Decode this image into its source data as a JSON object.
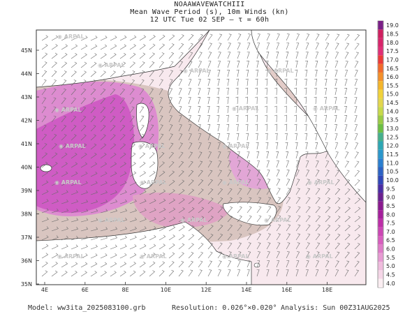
{
  "header": {
    "title_line1": "NOAAWAVEWATCHIII",
    "title_line2": "Mean Wave Period (s), 10m Winds (kn)",
    "title_line3": "12 UTC Tue 02 SEP  –  τ = 60h"
  },
  "map": {
    "lat_labels": [
      "45N",
      "44N",
      "43N",
      "42N",
      "41N",
      "40N",
      "39N",
      "38N",
      "37N",
      "36N",
      "35N"
    ],
    "lon_labels": [
      "4E",
      "6E",
      "8E",
      "10E",
      "12E",
      "14E",
      "16E",
      "18E"
    ],
    "watermark": "ARPAL"
  },
  "colorbar": {
    "values": [
      "19.0",
      "18.5",
      "18.0",
      "17.5",
      "17.0",
      "16.5",
      "16.0",
      "15.5",
      "15.0",
      "14.5",
      "14.0",
      "13.5",
      "13.0",
      "12.5",
      "12.0",
      "11.5",
      "11.0",
      "10.5",
      "10.0",
      "9.5",
      "9.0",
      "8.5",
      "8.0",
      "7.5",
      "7.0",
      "6.5",
      "6.0",
      "5.5",
      "5.0",
      "4.5",
      "4.0"
    ],
    "colors": [
      "#7a1f87",
      "#cf1f5f",
      "#d8256a",
      "#e02f76",
      "#ec3a38",
      "#f26a2a",
      "#f4902a",
      "#f4b52b",
      "#f1d23a",
      "#e3d64d",
      "#c7d94a",
      "#9acb45",
      "#6cbf44",
      "#45b08c",
      "#2da7b4",
      "#2b97cc",
      "#2a7fd0",
      "#2c62c4",
      "#3047b8",
      "#4a2da4",
      "#6a208f",
      "#8a1a8f",
      "#a51f9c",
      "#bd2ea8",
      "#cc46b4",
      "#d85dbe",
      "#df7cc8",
      "#e79bd3",
      "#efbcdd",
      "#f5d6e7",
      "#fbeef2"
    ]
  },
  "footer": {
    "model": "Model: ww3ita_2025083100.grb",
    "resolution": "Resolution: 0.026°×0.020°",
    "analysis": "Analysis: Sun 00Z31AUG2025"
  }
}
